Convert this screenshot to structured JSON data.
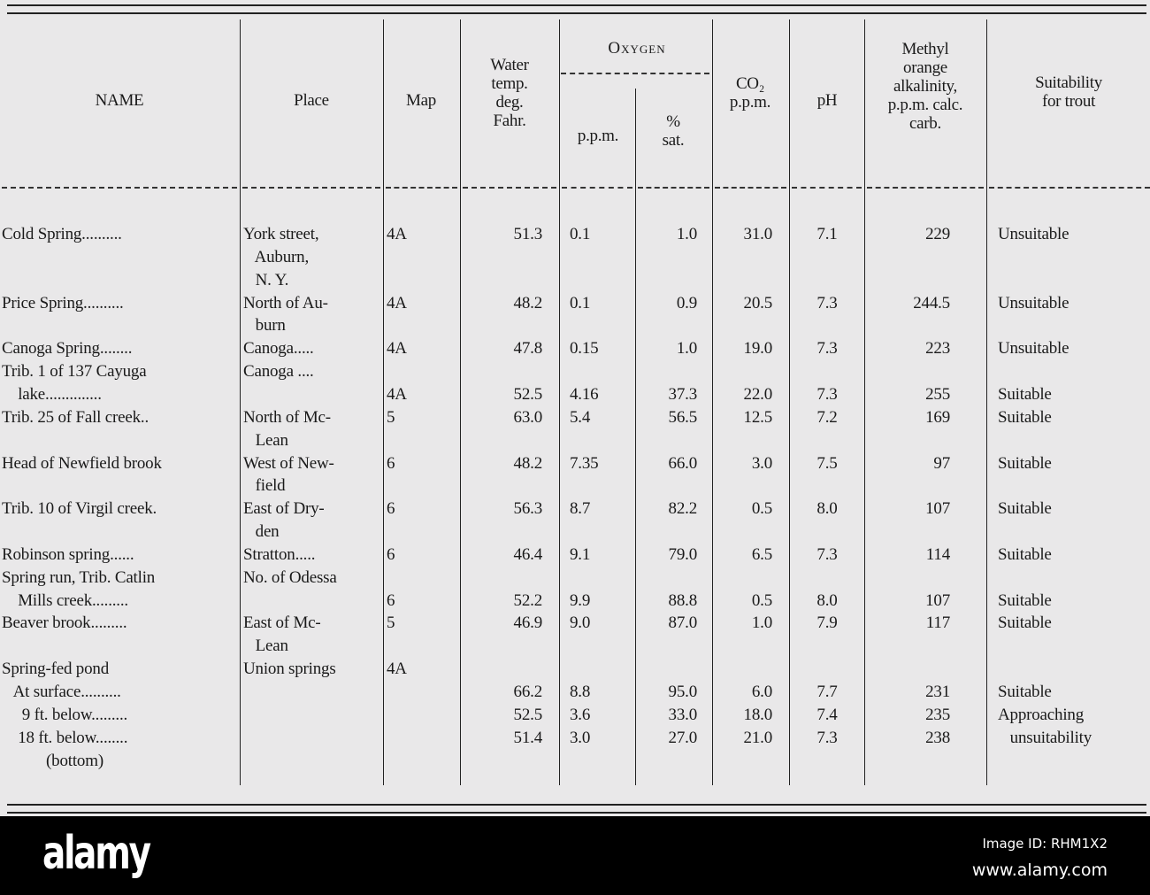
{
  "table": {
    "headers": {
      "name": "NAME",
      "place": "Place",
      "map": "Map",
      "temp": [
        "Water",
        "temp.",
        "deg.",
        "Fahr."
      ],
      "oxygen": "Oxygen",
      "o2_ppm": "p.p.m.",
      "o2_sat": [
        "%",
        "sat."
      ],
      "co2": [
        "CO₂",
        "p.p.m."
      ],
      "ph": "pH",
      "alk": [
        "Methyl",
        "orange",
        "alkalinity,",
        "p.p.m. calc.",
        "carb."
      ],
      "suit": [
        "Suitability",
        "for trout"
      ]
    },
    "rows": [
      {
        "name": [
          "Cold Spring.........."
        ],
        "place": [
          "York street,",
          "   Auburn,",
          "   N. Y."
        ],
        "map": "4A",
        "temp": "51.3",
        "o2_ppm": "0.1",
        "o2_sat": "1.0",
        "co2": "31.0",
        "ph": "7.1",
        "alk": "229",
        "suit": [
          "Unsuitable"
        ]
      },
      {
        "name": [
          "Price Spring.........."
        ],
        "place": [
          "North of Au-",
          "   burn"
        ],
        "map": "4A",
        "temp": "48.2",
        "o2_ppm": "0.1",
        "o2_sat": "0.9",
        "co2": "20.5",
        "ph": "7.3",
        "alk": "244.5",
        "suit": [
          "Unsuitable"
        ]
      },
      {
        "name": [
          "Canoga Spring........"
        ],
        "place": [
          "Canoga....."
        ],
        "map": "4A",
        "temp": "47.8",
        "o2_ppm": "0.15",
        "o2_sat": "1.0",
        "co2": "19.0",
        "ph": "7.3",
        "alk": "223",
        "suit": [
          "Unsuitable"
        ]
      },
      {
        "name": [
          "Trib. 1 of 137 Cayuga",
          "    lake.............."
        ],
        "place": [
          "Canoga ...."
        ],
        "map": "4A",
        "temp": "52.5",
        "o2_ppm": "4.16",
        "o2_sat": "37.3",
        "co2": "22.0",
        "ph": "7.3",
        "alk": "255",
        "suit": [
          "Suitable"
        ]
      },
      {
        "name": [
          "Trib. 25 of Fall creek.."
        ],
        "place": [
          "North of Mc-",
          "   Lean"
        ],
        "map": "5",
        "temp": "63.0",
        "o2_ppm": "5.4",
        "o2_sat": "56.5",
        "co2": "12.5",
        "ph": "7.2",
        "alk": "169",
        "suit": [
          "Suitable"
        ]
      },
      {
        "name": [
          "Head of Newfield brook"
        ],
        "place": [
          "West of New-",
          "   field"
        ],
        "map": "6",
        "temp": "48.2",
        "o2_ppm": "7.35",
        "o2_sat": "66.0",
        "co2": "3.0",
        "ph": "7.5",
        "alk": "97",
        "suit": [
          "Suitable"
        ]
      },
      {
        "name": [
          "Trib. 10 of Virgil creek."
        ],
        "place": [
          "East of Dry-",
          "   den"
        ],
        "map": "6",
        "temp": "56.3",
        "o2_ppm": "8.7",
        "o2_sat": "82.2",
        "co2": "0.5",
        "ph": "8.0",
        "alk": "107",
        "suit": [
          "Suitable"
        ]
      },
      {
        "name": [
          "Robinson spring......"
        ],
        "place": [
          "Stratton....."
        ],
        "map": "6",
        "temp": "46.4",
        "o2_ppm": "9.1",
        "o2_sat": "79.0",
        "co2": "6.5",
        "ph": "7.3",
        "alk": "114",
        "suit": [
          "Suitable"
        ]
      },
      {
        "name": [
          "Spring run, Trib. Catlin",
          "    Mills creek........."
        ],
        "place": [
          "No. of Odessa"
        ],
        "map": "6",
        "temp": "52.2",
        "o2_ppm": "9.9",
        "o2_sat": "88.8",
        "co2": "0.5",
        "ph": "8.0",
        "alk": "107",
        "suit": [
          "Suitable"
        ]
      },
      {
        "name": [
          "Beaver brook........."
        ],
        "place": [
          "East of Mc-",
          "   Lean"
        ],
        "map": "5",
        "temp": "46.9",
        "o2_ppm": "9.0",
        "o2_sat": "87.0",
        "co2": "1.0",
        "ph": "7.9",
        "alk": "117",
        "suit": [
          "Suitable"
        ]
      },
      {
        "name": [
          "Spring-fed pond"
        ],
        "place": [
          "Union springs"
        ],
        "map": "4A",
        "temp": "",
        "o2_ppm": "",
        "o2_sat": "",
        "co2": "",
        "ph": "",
        "alk": "",
        "suit": [
          ""
        ]
      },
      {
        "name": [
          "   At surface.........."
        ],
        "place": [
          ""
        ],
        "map": "",
        "temp": "66.2",
        "o2_ppm": "8.8",
        "o2_sat": "95.0",
        "co2": "6.0",
        "ph": "7.7",
        "alk": "231",
        "suit": [
          "Suitable"
        ]
      },
      {
        "name": [
          "     9 ft. below........."
        ],
        "place": [
          ""
        ],
        "map": "",
        "temp": "52.5",
        "o2_ppm": "3.6",
        "o2_sat": "33.0",
        "co2": "18.0",
        "ph": "7.4",
        "alk": "235",
        "suit": [
          "Approaching",
          "   unsuitability"
        ]
      },
      {
        "name": [
          "    18 ft. below........",
          "           (bottom)"
        ],
        "place": [
          ""
        ],
        "map": "",
        "temp": "51.4",
        "o2_ppm": "3.0",
        "o2_sat": "27.0",
        "co2": "21.0",
        "ph": "7.3",
        "alk": "238",
        "suit": [
          ""
        ]
      }
    ]
  },
  "watermark": {
    "logo": "alamy",
    "image_id": "Image ID: RHM1X2",
    "url": "www.alamy.com"
  }
}
